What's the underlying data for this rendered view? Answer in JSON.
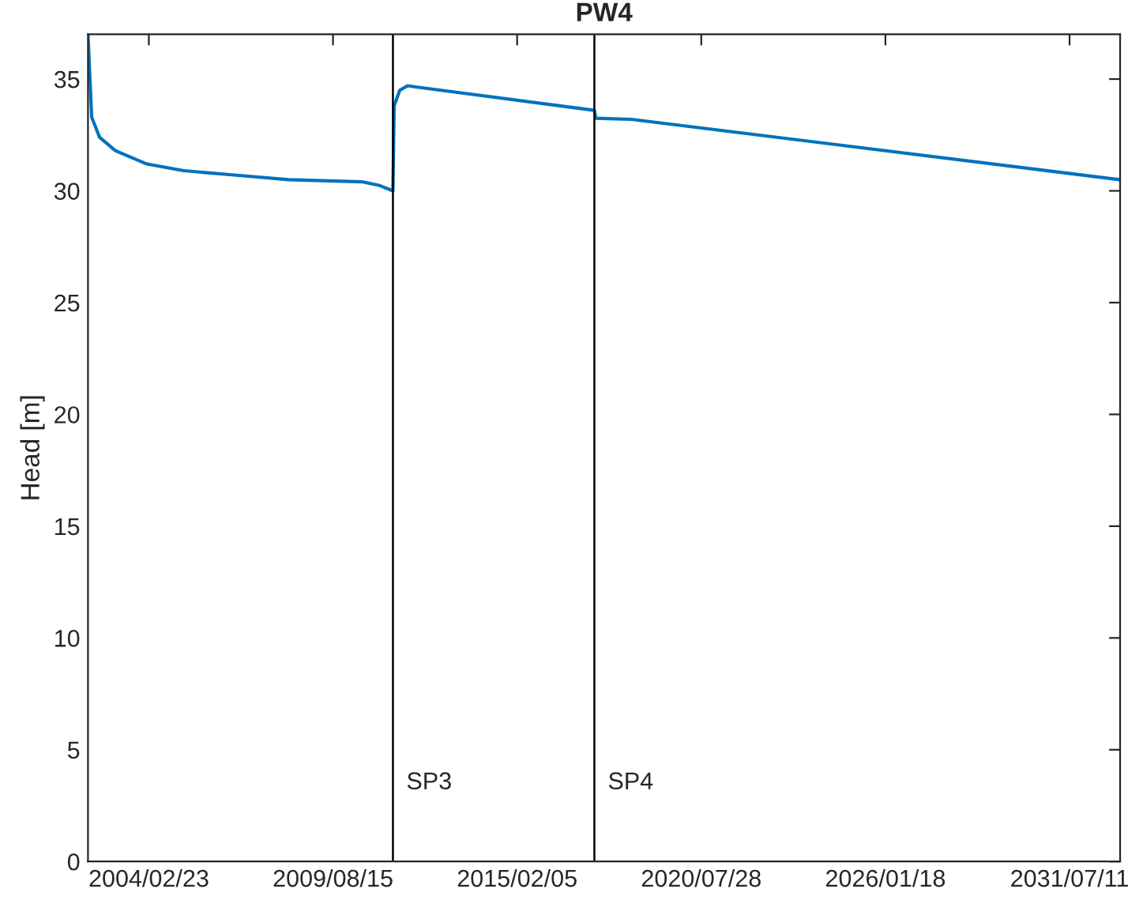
{
  "chart_data": {
    "type": "line",
    "title": "PW4",
    "ylabel": "Head [m]",
    "x": [
      "2002-05-03",
      "2002-06-12",
      "2002-09-05",
      "2003-02-24",
      "2004-02-02",
      "2005-03-09",
      "2006-10-02",
      "2008-04-20",
      "2010-07-06",
      "2010-12-25",
      "2011-05-28",
      "2011-06-10",
      "2011-08-10",
      "2011-11-04",
      "2012-01-29",
      "2017-05-24",
      "2017-06-10",
      "2018-06-28",
      "2033-01-05"
    ],
    "series": [
      {
        "color": "#0072bd",
        "values": [
          37.0,
          33.3,
          32.4,
          31.8,
          31.2,
          30.9,
          30.7,
          30.5,
          30.4,
          30.25,
          30.0,
          33.8,
          34.5,
          34.7,
          34.65,
          33.6,
          33.25,
          33.2,
          30.5
        ]
      }
    ],
    "xlim": [
      "2002-05-03",
      "2033-01-10"
    ],
    "xticks": [
      {
        "value": "2004-02-23",
        "label": "2004/02/23"
      },
      {
        "value": "2009-08-15",
        "label": "2009/08/15"
      },
      {
        "value": "2015-02-05",
        "label": "2015/02/05"
      },
      {
        "value": "2020-07-28",
        "label": "2020/07/28"
      },
      {
        "value": "2026-01-18",
        "label": "2026/01/18"
      },
      {
        "value": "2031-07-11",
        "label": "2031/07/11"
      }
    ],
    "ylim": [
      0,
      37
    ],
    "yticks": [
      0,
      5,
      10,
      15,
      20,
      25,
      30,
      35
    ],
    "ref_lines": [
      {
        "axis": "x",
        "value": "2011-05-28",
        "label": "SP3",
        "color": "#000000"
      },
      {
        "axis": "x",
        "value": "2017-05-24",
        "label": "SP4",
        "color": "#000000"
      }
    ],
    "grid": false,
    "legend": false,
    "line_style": "solid",
    "marker": "none"
  }
}
